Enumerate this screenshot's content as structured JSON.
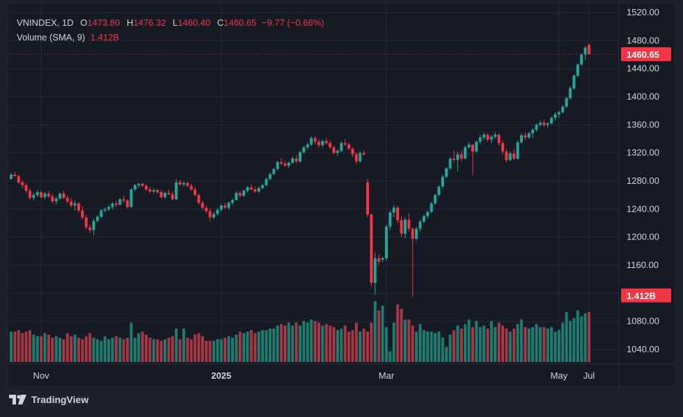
{
  "legend": {
    "symbol": "VNINDEX, 1D",
    "o_label": "O",
    "o": "1473.80",
    "h_label": "H",
    "h": "1476.32",
    "l_label": "L",
    "l": "1460.40",
    "c_label": "C",
    "c": "1460.65",
    "change": "−9.77 (−0.66%)",
    "volume_label": "Volume (SMA, 9)",
    "volume_value": "1.412B"
  },
  "brand": {
    "name": "TradingView",
    "logo": "tradingview-logo-icon"
  },
  "colors": {
    "up": "#26a69a",
    "down": "#f23645",
    "vol_up": "#1f7a6f",
    "vol_down": "#a63745",
    "grid": "#262a36",
    "bg": "#161a25",
    "axis_text": "#d1d4dc"
  },
  "chart_data": {
    "type": "candlestick",
    "ylim": [
      1030,
      1528
    ],
    "y_ticks": [
      "1520.00",
      "1480.00",
      "1440.00",
      "1400.00",
      "1360.00",
      "1320.00",
      "1280.00",
      "1240.00",
      "1200.00",
      "1160.00",
      "1120.00",
      "1080.00",
      "1040.00"
    ],
    "x_ticks": [
      "Nov",
      "2025",
      "Mar",
      "May",
      "Jul"
    ],
    "last_price_label": "1460.65",
    "volume_label": "1.412B",
    "candles": [
      [
        1283,
        1292,
        1282,
        1289
      ],
      [
        1289,
        1293,
        1286,
        1287
      ],
      [
        1287,
        1289,
        1276,
        1278
      ],
      [
        1278,
        1281,
        1270,
        1274
      ],
      [
        1274,
        1277,
        1263,
        1266
      ],
      [
        1266,
        1270,
        1253,
        1256
      ],
      [
        1256,
        1263,
        1252,
        1260
      ],
      [
        1260,
        1267,
        1257,
        1264
      ],
      [
        1264,
        1266,
        1255,
        1257
      ],
      [
        1257,
        1264,
        1254,
        1262
      ],
      [
        1262,
        1266,
        1256,
        1258
      ],
      [
        1258,
        1262,
        1248,
        1251
      ],
      [
        1251,
        1258,
        1247,
        1255
      ],
      [
        1255,
        1264,
        1253,
        1262
      ],
      [
        1262,
        1266,
        1254,
        1256
      ],
      [
        1256,
        1260,
        1248,
        1251
      ],
      [
        1251,
        1256,
        1242,
        1245
      ],
      [
        1245,
        1252,
        1238,
        1248
      ],
      [
        1248,
        1250,
        1235,
        1238
      ],
      [
        1238,
        1244,
        1225,
        1228
      ],
      [
        1228,
        1232,
        1211,
        1214
      ],
      [
        1214,
        1218,
        1206,
        1210
      ],
      [
        1210,
        1226,
        1203,
        1223
      ],
      [
        1223,
        1231,
        1221,
        1229
      ],
      [
        1229,
        1240,
        1227,
        1238
      ],
      [
        1238,
        1242,
        1235,
        1240
      ],
      [
        1240,
        1246,
        1237,
        1243
      ],
      [
        1243,
        1250,
        1240,
        1248
      ],
      [
        1248,
        1252,
        1243,
        1246
      ],
      [
        1246,
        1256,
        1245,
        1254
      ],
      [
        1254,
        1259,
        1249,
        1252
      ],
      [
        1252,
        1254,
        1241,
        1243
      ],
      [
        1243,
        1270,
        1242,
        1268
      ],
      [
        1268,
        1276,
        1266,
        1274
      ],
      [
        1274,
        1278,
        1270,
        1276
      ],
      [
        1276,
        1278,
        1271,
        1273
      ],
      [
        1273,
        1276,
        1266,
        1268
      ],
      [
        1268,
        1271,
        1263,
        1265
      ],
      [
        1265,
        1270,
        1262,
        1267
      ],
      [
        1267,
        1269,
        1262,
        1264
      ],
      [
        1264,
        1267,
        1255,
        1257
      ],
      [
        1257,
        1265,
        1255,
        1263
      ],
      [
        1263,
        1268,
        1260,
        1261
      ],
      [
        1261,
        1265,
        1252,
        1254
      ],
      [
        1254,
        1283,
        1252,
        1278
      ],
      [
        1278,
        1282,
        1273,
        1275
      ],
      [
        1275,
        1279,
        1272,
        1277
      ],
      [
        1277,
        1279,
        1271,
        1273
      ],
      [
        1273,
        1276,
        1266,
        1268
      ],
      [
        1268,
        1272,
        1258,
        1260
      ],
      [
        1260,
        1262,
        1246,
        1249
      ],
      [
        1249,
        1252,
        1239,
        1242
      ],
      [
        1242,
        1245,
        1234,
        1237
      ],
      [
        1237,
        1241,
        1222,
        1228
      ],
      [
        1228,
        1236,
        1225,
        1233
      ],
      [
        1233,
        1241,
        1230,
        1239
      ],
      [
        1239,
        1247,
        1237,
        1245
      ],
      [
        1245,
        1249,
        1240,
        1242
      ],
      [
        1242,
        1251,
        1239,
        1249
      ],
      [
        1249,
        1255,
        1246,
        1253
      ],
      [
        1253,
        1265,
        1252,
        1263
      ],
      [
        1263,
        1266,
        1257,
        1259
      ],
      [
        1259,
        1268,
        1257,
        1266
      ],
      [
        1266,
        1273,
        1264,
        1271
      ],
      [
        1271,
        1275,
        1266,
        1268
      ],
      [
        1268,
        1272,
        1263,
        1265
      ],
      [
        1265,
        1272,
        1263,
        1270
      ],
      [
        1270,
        1276,
        1268,
        1274
      ],
      [
        1274,
        1285,
        1272,
        1283
      ],
      [
        1283,
        1292,
        1281,
        1290
      ],
      [
        1290,
        1299,
        1288,
        1297
      ],
      [
        1297,
        1309,
        1295,
        1307
      ],
      [
        1307,
        1313,
        1302,
        1305
      ],
      [
        1305,
        1309,
        1300,
        1302
      ],
      [
        1302,
        1308,
        1298,
        1306
      ],
      [
        1306,
        1315,
        1304,
        1312
      ],
      [
        1312,
        1317,
        1305,
        1308
      ],
      [
        1308,
        1323,
        1306,
        1321
      ],
      [
        1321,
        1330,
        1319,
        1328
      ],
      [
        1328,
        1335,
        1325,
        1332
      ],
      [
        1332,
        1344,
        1330,
        1341
      ],
      [
        1341,
        1344,
        1333,
        1336
      ],
      [
        1336,
        1340,
        1328,
        1331
      ],
      [
        1331,
        1339,
        1328,
        1337
      ],
      [
        1337,
        1342,
        1332,
        1334
      ],
      [
        1334,
        1338,
        1326,
        1328
      ],
      [
        1328,
        1330,
        1318,
        1320
      ],
      [
        1320,
        1325,
        1316,
        1323
      ],
      [
        1323,
        1336,
        1321,
        1334
      ],
      [
        1334,
        1340,
        1330,
        1332
      ],
      [
        1332,
        1335,
        1324,
        1326
      ],
      [
        1326,
        1328,
        1314,
        1318
      ],
      [
        1318,
        1321,
        1304,
        1308
      ],
      [
        1308,
        1322,
        1306,
        1320
      ],
      [
        1320,
        1324,
        1316,
        1318
      ],
      [
        1278,
        1283,
        1228,
        1232
      ],
      [
        1232,
        1234,
        1130,
        1135
      ],
      [
        1135,
        1178,
        1118,
        1170
      ],
      [
        1170,
        1175,
        1160,
        1165
      ],
      [
        1168,
        1172,
        1164,
        1170
      ],
      [
        1170,
        1218,
        1166,
        1215
      ],
      [
        1215,
        1238,
        1210,
        1235
      ],
      [
        1235,
        1246,
        1228,
        1242
      ],
      [
        1242,
        1245,
        1220,
        1224
      ],
      [
        1224,
        1230,
        1200,
        1205
      ],
      [
        1205,
        1228,
        1198,
        1225
      ],
      [
        1225,
        1234,
        1208,
        1212
      ],
      [
        1212,
        1214,
        1115,
        1198
      ],
      [
        1198,
        1215,
        1195,
        1212
      ],
      [
        1212,
        1225,
        1208,
        1222
      ],
      [
        1222,
        1232,
        1220,
        1230
      ],
      [
        1230,
        1238,
        1226,
        1236
      ],
      [
        1236,
        1250,
        1234,
        1248
      ],
      [
        1248,
        1262,
        1246,
        1260
      ],
      [
        1260,
        1274,
        1258,
        1272
      ],
      [
        1272,
        1289,
        1270,
        1286
      ],
      [
        1286,
        1300,
        1284,
        1298
      ],
      [
        1298,
        1314,
        1296,
        1312
      ],
      [
        1312,
        1324,
        1306,
        1310
      ],
      [
        1310,
        1322,
        1294,
        1318
      ],
      [
        1318,
        1324,
        1308,
        1312
      ],
      [
        1312,
        1330,
        1311,
        1328
      ],
      [
        1328,
        1335,
        1326,
        1332
      ],
      [
        1332,
        1330,
        1288,
        1322
      ],
      [
        1322,
        1338,
        1320,
        1336
      ],
      [
        1336,
        1346,
        1332,
        1342
      ],
      [
        1342,
        1350,
        1338,
        1346
      ],
      [
        1346,
        1348,
        1336,
        1339
      ],
      [
        1339,
        1346,
        1334,
        1343
      ],
      [
        1343,
        1350,
        1340,
        1346
      ],
      [
        1346,
        1348,
        1330,
        1334
      ],
      [
        1334,
        1338,
        1318,
        1322
      ],
      [
        1322,
        1326,
        1306,
        1310
      ],
      [
        1310,
        1322,
        1308,
        1319
      ],
      [
        1319,
        1326,
        1310,
        1312
      ],
      [
        1312,
        1338,
        1310,
        1335
      ],
      [
        1335,
        1348,
        1333,
        1345
      ],
      [
        1345,
        1350,
        1338,
        1342
      ],
      [
        1342,
        1350,
        1340,
        1348
      ],
      [
        1348,
        1356,
        1341,
        1353
      ],
      [
        1353,
        1362,
        1350,
        1360
      ],
      [
        1360,
        1366,
        1358,
        1363
      ],
      [
        1363,
        1368,
        1357,
        1360
      ],
      [
        1360,
        1364,
        1356,
        1362
      ],
      [
        1362,
        1372,
        1360,
        1370
      ],
      [
        1370,
        1378,
        1366,
        1375
      ],
      [
        1375,
        1380,
        1370,
        1378
      ],
      [
        1378,
        1388,
        1376,
        1386
      ],
      [
        1386,
        1400,
        1384,
        1398
      ],
      [
        1398,
        1415,
        1396,
        1412
      ],
      [
        1412,
        1432,
        1410,
        1430
      ],
      [
        1430,
        1448,
        1428,
        1446
      ],
      [
        1446,
        1462,
        1444,
        1460
      ],
      [
        1460,
        1472,
        1452,
        1470
      ],
      [
        1473.8,
        1476.32,
        1460.4,
        1460.65
      ]
    ],
    "volume_ylim": [
      0,
      2.75
    ],
    "volumes": [
      1.0,
      1.0,
      1.05,
      0.95,
      1.0,
      1.05,
      0.9,
      0.85,
      0.85,
      0.95,
      0.9,
      0.8,
      0.85,
      0.8,
      0.75,
      0.95,
      0.85,
      0.9,
      0.8,
      0.75,
      0.85,
      0.95,
      0.8,
      0.75,
      0.7,
      0.85,
      0.75,
      0.8,
      0.85,
      0.8,
      0.75,
      0.8,
      1.3,
      0.8,
      0.95,
      1.0,
      0.9,
      0.8,
      0.75,
      0.75,
      0.7,
      0.75,
      0.8,
      0.85,
      1.1,
      0.75,
      1.1,
      0.8,
      0.75,
      0.9,
      0.95,
      0.85,
      0.7,
      0.7,
      0.7,
      0.75,
      0.75,
      0.8,
      0.85,
      0.8,
      0.9,
      1.0,
      0.95,
      1.0,
      1.05,
      0.95,
      1.0,
      1.05,
      1.05,
      1.1,
      1.1,
      1.2,
      1.25,
      1.2,
      1.3,
      1.2,
      1.3,
      1.2,
      1.35,
      1.3,
      1.4,
      1.35,
      1.3,
      1.2,
      1.25,
      1.2,
      1.15,
      1.05,
      1.1,
      1.2,
      1.0,
      1.05,
      1.3,
      1.0,
      1.1,
      1.0,
      1.3,
      2.0,
      1.7,
      1.85,
      1.15,
      0.35,
      1.3,
      1.9,
      1.75,
      1.4,
      1.4,
      1.2,
      1.0,
      1.25,
      1.05,
      1.0,
      1.0,
      0.95,
      1.0,
      0.8,
      0.5,
      0.9,
      1.05,
      1.2,
      1.1,
      1.25,
      1.4,
      1.15,
      1.35,
      1.15,
      1.2,
      1.1,
      1.35,
      1.15,
      1.3,
      1.2,
      1.1,
      1.0,
      1.1,
      1.25,
      1.4,
      1.15,
      1.1,
      1.15,
      1.25,
      1.15,
      1.15,
      1.1,
      1.15,
      1.0,
      1.05,
      1.3,
      1.65,
      1.35,
      1.45,
      1.7,
      1.5,
      1.6,
      1.65,
      1.65,
      1.45,
      1.52
    ]
  }
}
